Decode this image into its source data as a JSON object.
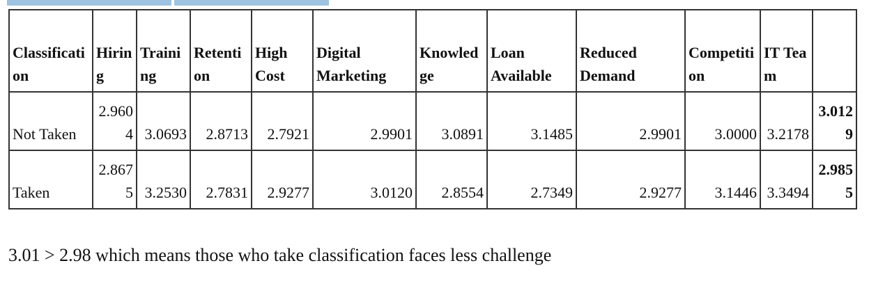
{
  "table": {
    "headers": [
      "Classification",
      "Hiring",
      "Training",
      "Retention",
      "High Cost",
      "Digital Marketing",
      "Knowledge",
      "Loan Available",
      "Reduced Demand",
      "Competition",
      "IT Team",
      ""
    ],
    "rows": [
      {
        "label": "Not Taken",
        "values": [
          "2.9604",
          "3.0693",
          "2.8713",
          "2.7921",
          "2.9901",
          "3.0891",
          "3.1485",
          "2.9901",
          "3.0000",
          "3.2178"
        ],
        "total": "3.0129"
      },
      {
        "label": "Taken",
        "values": [
          "2.8675",
          "3.2530",
          "2.7831",
          "2.9277",
          "3.0120",
          "2.8554",
          "2.7349",
          "2.9277",
          "3.1446",
          "3.3494"
        ],
        "total": "2.9855"
      }
    ]
  },
  "note": "3.01 > 2.98 which means those who take classification faces less challenge",
  "colors": {
    "header_strip": "#9dc3e0",
    "border": "#333333"
  }
}
